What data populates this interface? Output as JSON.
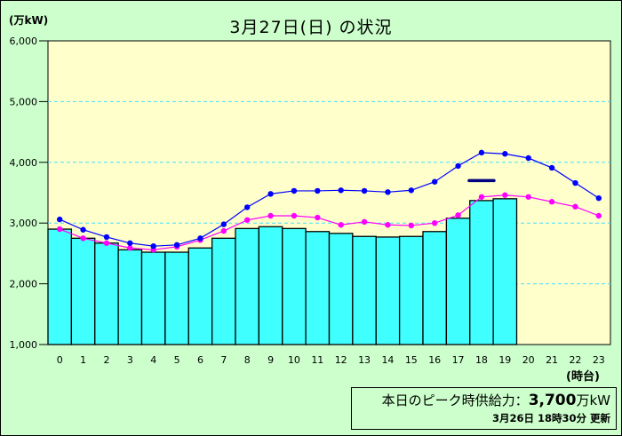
{
  "header": {
    "title": "3月27日(日) の状況",
    "unit_label": "(万kW)"
  },
  "footer": {
    "hour_unit": "(時台)",
    "peak_label": "本日のピーク時供給力：",
    "peak_value": "3,700",
    "peak_unit": "万kW",
    "updated": "3月26日 18時30分 更新"
  },
  "colors": {
    "background": "#ccffcc",
    "plot_background": "#ffffcc",
    "bar_fill": "#40ffff",
    "forecast_line": "#0000ff",
    "previous_day_line": "#ff00ff",
    "peak_supply_marker": "#000080",
    "gridline": "#40e0ff"
  },
  "chart_data": {
    "type": "bar",
    "title": "3月27日(日) の状況",
    "xlabel": "(時台)",
    "ylabel": "(万kW)",
    "ylim": [
      1000,
      6000
    ],
    "yticks": [
      1000,
      2000,
      3000,
      4000,
      5000,
      6000
    ],
    "ytick_labels": [
      "1,000",
      "2,000",
      "3,000",
      "4,000",
      "5,000",
      "6,000"
    ],
    "grid": true,
    "categories": [
      "0",
      "1",
      "2",
      "3",
      "4",
      "5",
      "6",
      "7",
      "8",
      "9",
      "10",
      "11",
      "12",
      "13",
      "14",
      "15",
      "16",
      "17",
      "18",
      "19",
      "20",
      "21",
      "22",
      "23"
    ],
    "series": [
      {
        "name": "actual_demand",
        "kind": "bar",
        "color": "#40ffff",
        "values": [
          2900,
          2750,
          2670,
          2560,
          2520,
          2520,
          2590,
          2750,
          2910,
          2940,
          2910,
          2860,
          2830,
          2780,
          2770,
          2780,
          2860,
          3080,
          3370,
          3400,
          null,
          null,
          null,
          null
        ]
      },
      {
        "name": "forecast_demand",
        "kind": "line",
        "color": "#0000ff",
        "values": [
          3060,
          2890,
          2770,
          2670,
          2620,
          2640,
          2750,
          2980,
          3260,
          3480,
          3530,
          3530,
          3540,
          3530,
          3510,
          3540,
          3680,
          3940,
          4160,
          4140,
          4070,
          3910,
          3660,
          3410
        ]
      },
      {
        "name": "previous_day_actual",
        "kind": "line",
        "color": "#ff00ff",
        "values": [
          2900,
          2750,
          2670,
          2590,
          2560,
          2610,
          2720,
          2870,
          3050,
          3120,
          3120,
          3090,
          2970,
          3020,
          2970,
          2960,
          3000,
          3130,
          3430,
          3460,
          3430,
          3350,
          3270,
          3120
        ]
      }
    ],
    "annotations": [
      {
        "type": "hline_segment",
        "label": "peak supply capacity",
        "value": 3700,
        "x_center": 18,
        "color": "#000080"
      }
    ]
  }
}
